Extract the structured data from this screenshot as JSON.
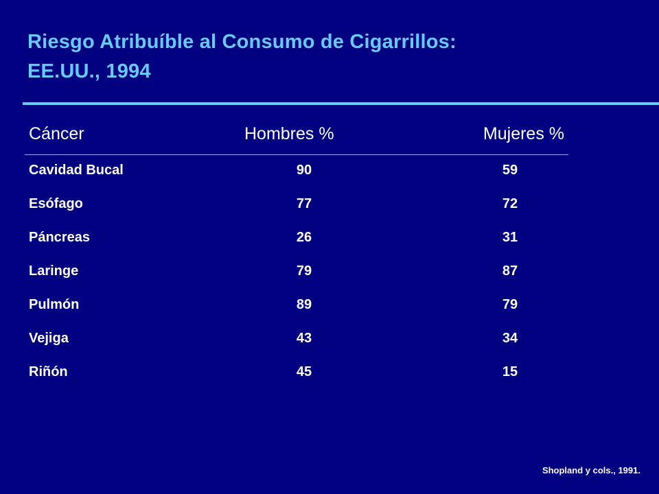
{
  "slide": {
    "title_line1": "Riesgo Atribuíble al Consumo de Cigarrillos:",
    "title_line2": "EE.UU., 1994",
    "source": "Shopland y cols., 1991."
  },
  "table": {
    "headers": [
      "Cáncer",
      "Hombres %",
      "Mujeres %"
    ],
    "rows": [
      [
        "Cavidad Bucal",
        "90",
        "59"
      ],
      [
        "Esófago",
        "77",
        "72"
      ],
      [
        "Páncreas",
        "26",
        "31"
      ],
      [
        "Laringe",
        "79",
        "87"
      ],
      [
        "Pulmón",
        "89",
        "79"
      ],
      [
        "Vejiga",
        "43",
        "34"
      ],
      [
        "Riñón",
        "45",
        "15"
      ]
    ]
  },
  "colors": {
    "background": "#000080",
    "accent": "#66ccff",
    "text": "#ffffff"
  }
}
